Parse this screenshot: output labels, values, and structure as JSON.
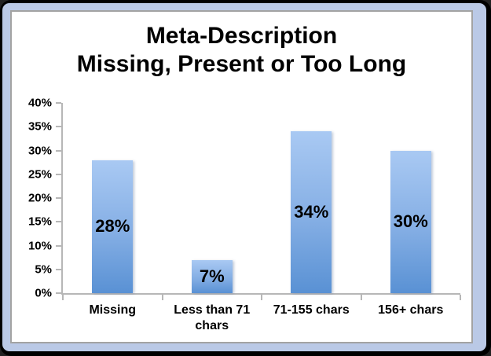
{
  "title": {
    "line1": "Meta-Description",
    "line2": "Missing, Present or Too Long"
  },
  "chart_data": {
    "type": "bar",
    "title": "Meta-Description Missing, Present or Too Long",
    "categories": [
      "Missing",
      "Less than 71 chars",
      "71-155 chars",
      "156+ chars"
    ],
    "values": [
      28,
      7,
      34,
      30
    ],
    "data_labels": [
      "28%",
      "7%",
      "34%",
      "30%"
    ],
    "xlabel": "",
    "ylabel": "",
    "ylim": [
      0,
      40
    ],
    "ytick_step": 5,
    "ytick_labels": [
      "0%",
      "5%",
      "10%",
      "15%",
      "20%",
      "25%",
      "30%",
      "35%",
      "40%"
    ],
    "grid": false,
    "legend": "none",
    "bar_color_top": "#a9c9f3",
    "bar_color_bottom": "#5991d4",
    "axis_color": "#b7b7b7",
    "label_color": "#000000"
  },
  "colors": {
    "frame_outer": "#000000",
    "frame_inner": "#bac9e6",
    "panel_border": "#a3a3a3",
    "panel_bg": "#ffffff"
  }
}
